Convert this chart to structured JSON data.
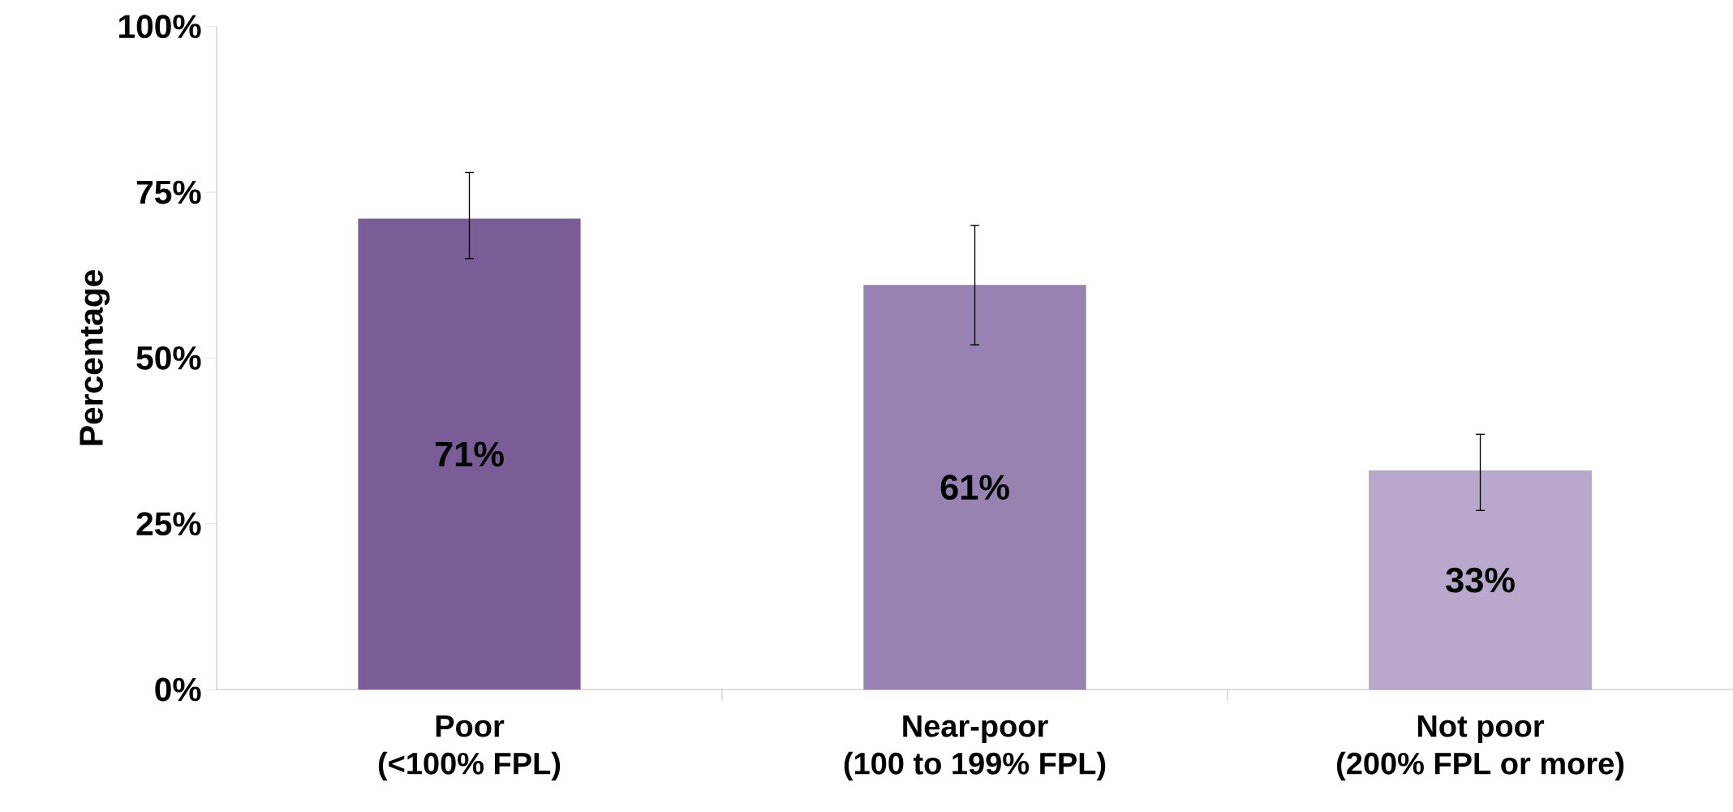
{
  "chart_data": {
    "type": "bar",
    "ylabel": "Percentage",
    "categories": [
      "Poor\n(<100% FPL)",
      "Near-poor\n(100 to 199% FPL)",
      "Not poor\n(200% FPL or more)"
    ],
    "values": [
      71,
      61,
      33
    ],
    "colors": [
      "#7a5c96",
      "#9882b2",
      "#b8a8cc"
    ],
    "errors": [
      [
        65,
        78
      ],
      [
        52,
        70
      ],
      [
        27,
        38.5
      ]
    ],
    "value_labels": [
      "71%",
      "61%",
      "33%"
    ],
    "ylim": [
      0,
      100
    ],
    "yticks": [
      {
        "value": 0,
        "label": "0%"
      },
      {
        "value": 25,
        "label": "25%"
      },
      {
        "value": 50,
        "label": "50%"
      },
      {
        "value": 75,
        "label": "75%"
      },
      {
        "value": 100,
        "label": "100%"
      }
    ],
    "grid": false
  }
}
